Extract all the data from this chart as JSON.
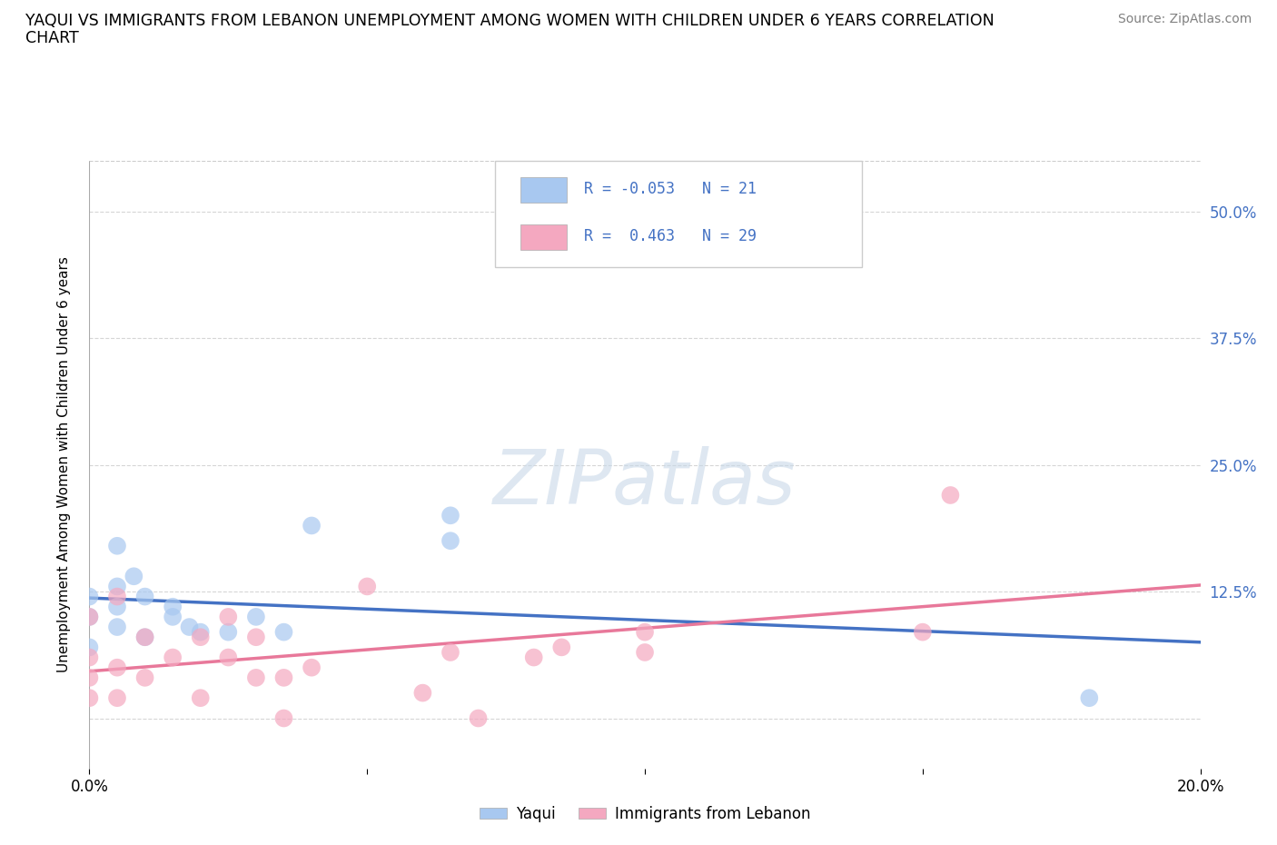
{
  "title_line1": "YAQUI VS IMMIGRANTS FROM LEBANON UNEMPLOYMENT AMONG WOMEN WITH CHILDREN UNDER 6 YEARS CORRELATION",
  "title_line2": "CHART",
  "source": "Source: ZipAtlas.com",
  "ylabel": "Unemployment Among Women with Children Under 6 years",
  "xlim": [
    0.0,
    0.2
  ],
  "ylim": [
    -0.05,
    0.55
  ],
  "x_ticks": [
    0.0,
    0.05,
    0.1,
    0.15,
    0.2
  ],
  "x_tick_labels": [
    "0.0%",
    "",
    "",
    "",
    "20.0%"
  ],
  "y_ticks": [
    0.0,
    0.125,
    0.25,
    0.375,
    0.5
  ],
  "y_tick_labels_right": [
    "",
    "12.5%",
    "25.0%",
    "37.5%",
    "50.0%"
  ],
  "watermark": "ZIPatlas",
  "yaqui_color": "#a8c8f0",
  "lebanon_color": "#f4a8c0",
  "yaqui_line_color": "#4472c4",
  "lebanon_line_color": "#e8789a",
  "R_yaqui": -0.053,
  "N_yaqui": 21,
  "R_lebanon": 0.463,
  "N_lebanon": 29,
  "yaqui_x": [
    0.0,
    0.0,
    0.0,
    0.005,
    0.005,
    0.005,
    0.008,
    0.01,
    0.015,
    0.018,
    0.02,
    0.025,
    0.03,
    0.035,
    0.04,
    0.005,
    0.01,
    0.015,
    0.065,
    0.065,
    0.18
  ],
  "yaqui_y": [
    0.07,
    0.1,
    0.12,
    0.09,
    0.11,
    0.13,
    0.14,
    0.12,
    0.1,
    0.09,
    0.085,
    0.085,
    0.1,
    0.085,
    0.19,
    0.17,
    0.08,
    0.11,
    0.175,
    0.2,
    0.02
  ],
  "lebanon_x": [
    0.0,
    0.0,
    0.0,
    0.0,
    0.005,
    0.005,
    0.005,
    0.01,
    0.01,
    0.015,
    0.02,
    0.02,
    0.025,
    0.025,
    0.03,
    0.03,
    0.035,
    0.035,
    0.04,
    0.05,
    0.06,
    0.065,
    0.07,
    0.08,
    0.085,
    0.1,
    0.1,
    0.15,
    0.155
  ],
  "lebanon_y": [
    0.02,
    0.04,
    0.06,
    0.1,
    0.02,
    0.05,
    0.12,
    0.04,
    0.08,
    0.06,
    0.02,
    0.08,
    0.06,
    0.1,
    0.04,
    0.08,
    0.0,
    0.04,
    0.05,
    0.13,
    0.025,
    0.065,
    0.0,
    0.06,
    0.07,
    0.065,
    0.085,
    0.085,
    0.22
  ],
  "background_color": "#ffffff",
  "grid_color": "#cccccc"
}
